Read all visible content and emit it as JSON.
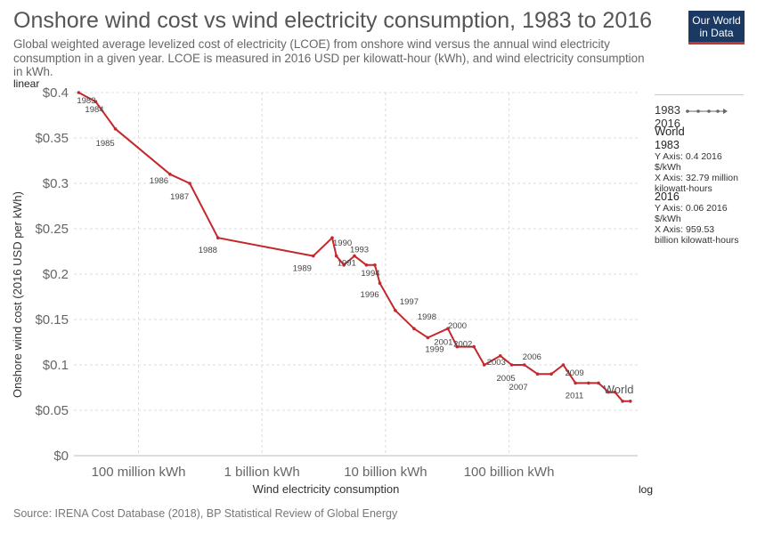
{
  "header": {
    "title": "Onshore wind cost vs wind electricity consumption, 1983 to 2016",
    "subtitle": "Global weighted average levelized cost of electricity (LCOE) from onshore wind versus the annual wind electricity consumption in a given year. LCOE is measured in 2016 USD per kilowatt-hour (kWh), and wind electricity consumption in kWh.",
    "logo_line1": "Our World",
    "logo_line2": "in Data"
  },
  "controls": {
    "y_scale": "linear",
    "x_scale": "log"
  },
  "source": "Source: IRENA Cost Database (2018), BP Statistical Review of Global Energy",
  "legend": {
    "range_start": "1983",
    "range_end": "2016",
    "entity": "World",
    "start": {
      "year": "1983",
      "line1": "Y Axis: 0.4 2016",
      "line2": "$/kWh",
      "line3": "X Axis: 32.79 million",
      "line4": "kilowatt-hours"
    },
    "end": {
      "year": "2016",
      "line1": "Y Axis: 0.06 2016",
      "line2": "$/kWh",
      "line3": "X Axis: 959.53",
      "line4": "billion kilowatt-hours"
    }
  },
  "colors": {
    "series": "#c4282c",
    "grid": "#dddddd",
    "axis": "#999999"
  },
  "chart_data": {
    "type": "line",
    "xlabel": "Wind electricity consumption",
    "ylabel": "Onshore wind cost (2016 USD per kWh)",
    "x_scale": "log",
    "y_scale": "linear",
    "xlim": [
      30000000,
      1100000000000
    ],
    "ylim": [
      0,
      0.4
    ],
    "x_ticks": [
      {
        "value": 100000000,
        "label": "100 million kWh"
      },
      {
        "value": 1000000000,
        "label": "1 billion kWh"
      },
      {
        "value": 10000000000,
        "label": "10 billion kWh"
      },
      {
        "value": 100000000000,
        "label": "100 billion kWh"
      }
    ],
    "y_ticks": [
      {
        "value": 0,
        "label": "$0"
      },
      {
        "value": 0.05,
        "label": "$0.05"
      },
      {
        "value": 0.1,
        "label": "$0.1"
      },
      {
        "value": 0.15,
        "label": "$0.15"
      },
      {
        "value": 0.2,
        "label": "$0.2"
      },
      {
        "value": 0.25,
        "label": "$0.25"
      },
      {
        "value": 0.3,
        "label": "$0.3"
      },
      {
        "value": 0.35,
        "label": "$0.35"
      },
      {
        "value": 0.4,
        "label": "$0.4"
      }
    ],
    "grid": true,
    "series": [
      {
        "name": "World",
        "points": [
          {
            "year": "1983",
            "x": 32790000,
            "y": 0.4
          },
          {
            "year": "1984",
            "x": 45000000,
            "y": 0.39
          },
          {
            "year": "1985",
            "x": 65000000,
            "y": 0.36
          },
          {
            "year": "1986",
            "x": 180000000,
            "y": 0.31
          },
          {
            "year": "1987",
            "x": 260000000,
            "y": 0.3
          },
          {
            "year": "1988",
            "x": 440000000,
            "y": 0.24
          },
          {
            "year": "1989",
            "x": 2600000000,
            "y": 0.22
          },
          {
            "year": "1990",
            "x": 3700000000,
            "y": 0.24
          },
          {
            "year": "1991",
            "x": 4000000000,
            "y": 0.22
          },
          {
            "year": "1992",
            "x": 4600000000,
            "y": 0.21
          },
          {
            "year": "1993",
            "x": 5600000000,
            "y": 0.22
          },
          {
            "year": "1994",
            "x": 7000000000,
            "y": 0.21
          },
          {
            "year": "1995",
            "x": 8200000000,
            "y": 0.21
          },
          {
            "year": "1996",
            "x": 9000000000,
            "y": 0.19
          },
          {
            "year": "1997",
            "x": 12000000000,
            "y": 0.16
          },
          {
            "year": "1998",
            "x": 17000000000,
            "y": 0.14
          },
          {
            "year": "1999",
            "x": 22000000000,
            "y": 0.13
          },
          {
            "year": "2000",
            "x": 32000000000,
            "y": 0.14
          },
          {
            "year": "2001",
            "x": 38000000000,
            "y": 0.12
          },
          {
            "year": "2002",
            "x": 52000000000,
            "y": 0.12
          },
          {
            "year": "2003",
            "x": 63000000000,
            "y": 0.1
          },
          {
            "year": "2004",
            "x": 85000000000,
            "y": 0.11
          },
          {
            "year": "2005",
            "x": 105000000000,
            "y": 0.1
          },
          {
            "year": "2006",
            "x": 133000000000,
            "y": 0.1
          },
          {
            "year": "2007",
            "x": 170000000000,
            "y": 0.09
          },
          {
            "year": "2008",
            "x": 220000000000,
            "y": 0.09
          },
          {
            "year": "2009",
            "x": 275000000000,
            "y": 0.1
          },
          {
            "year": "2010",
            "x": 345000000000,
            "y": 0.08
          },
          {
            "year": "2011",
            "x": 440000000000,
            "y": 0.08
          },
          {
            "year": "2012",
            "x": 530000000000,
            "y": 0.08
          },
          {
            "year": "2013",
            "x": 640000000000,
            "y": 0.07
          },
          {
            "year": "2014",
            "x": 720000000000,
            "y": 0.07
          },
          {
            "year": "2015",
            "x": 830000000000,
            "y": 0.06
          },
          {
            "year": "2016",
            "x": 959530000000,
            "y": 0.06
          }
        ],
        "visible_year_labels": [
          "1983",
          "1984",
          "1985",
          "1986",
          "1987",
          "1988",
          "1989",
          "1990",
          "1991",
          "1993",
          "1994",
          "1996",
          "1997",
          "1998",
          "1999",
          "2000",
          "2001",
          "2002",
          "2003",
          "2005",
          "2006",
          "2007",
          "2009",
          "2011"
        ],
        "end_label": "World"
      }
    ]
  }
}
